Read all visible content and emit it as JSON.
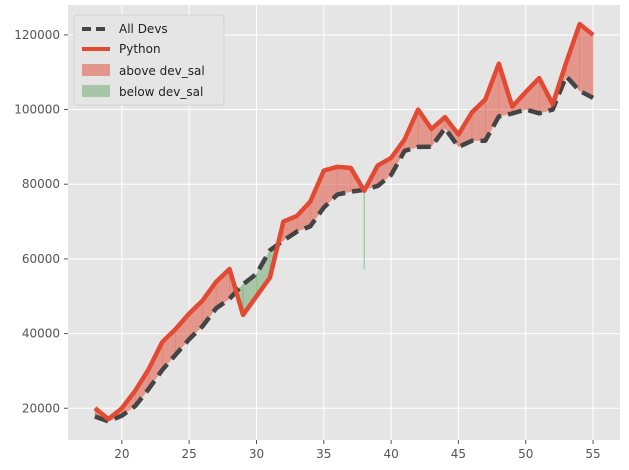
{
  "chart_data": {
    "type": "line",
    "title": "",
    "xlabel": "",
    "ylabel": "",
    "xlim": [
      16,
      57
    ],
    "ylim": [
      11500,
      128000
    ],
    "x_ticks": [
      20,
      25,
      30,
      35,
      40,
      45,
      50,
      55
    ],
    "y_ticks": [
      20000,
      40000,
      60000,
      80000,
      100000,
      120000
    ],
    "grid": true,
    "legend_position": "top-left",
    "x": [
      18,
      19,
      20,
      21,
      22,
      23,
      24,
      25,
      26,
      27,
      28,
      29,
      30,
      31,
      32,
      33,
      34,
      35,
      36,
      37,
      38,
      39,
      40,
      41,
      42,
      43,
      44,
      45,
      46,
      47,
      48,
      49,
      50,
      51,
      52,
      53,
      54,
      55
    ],
    "series": [
      {
        "name": "All Devs",
        "style": "dashed",
        "color": "#444444",
        "values": [
          17784,
          16500,
          18012,
          20628,
          25206,
          30252,
          34368,
          38496,
          42000,
          46752,
          49320,
          53200,
          56000,
          62316,
          64928,
          67317,
          68748,
          73752,
          77232,
          78000,
          78508,
          79536,
          82488,
          88935,
          90000,
          90056,
          95000,
          90000,
          91633,
          91660,
          98150,
          98964,
          100000,
          98988,
          100000,
          108923,
          105000,
          103117
        ]
      },
      {
        "name": "Python",
        "style": "solid",
        "color": "#e24a33",
        "values": [
          20046,
          17100,
          20000,
          24744,
          30500,
          37732,
          41247,
          45372,
          48876,
          53850,
          57287,
          45000,
          50000,
          55000,
          70000,
          71496,
          75370,
          83640,
          84666,
          84392,
          78254,
          85000,
          87038,
          91991,
          100000,
          94796,
          97962,
          93302,
          99240,
          102736,
          112285,
          100771,
          104708,
          108423,
          101407,
          112542,
          122870,
          120000
        ]
      }
    ],
    "fills": [
      {
        "name": "above dev_sal",
        "color": "#e24a33",
        "alpha": 0.5
      },
      {
        "name": "below dev_sal",
        "color": "#348a34",
        "alpha": 0.35
      }
    ],
    "thin_line": {
      "x": 38,
      "y_from": 57300,
      "y_to": 78500
    }
  }
}
